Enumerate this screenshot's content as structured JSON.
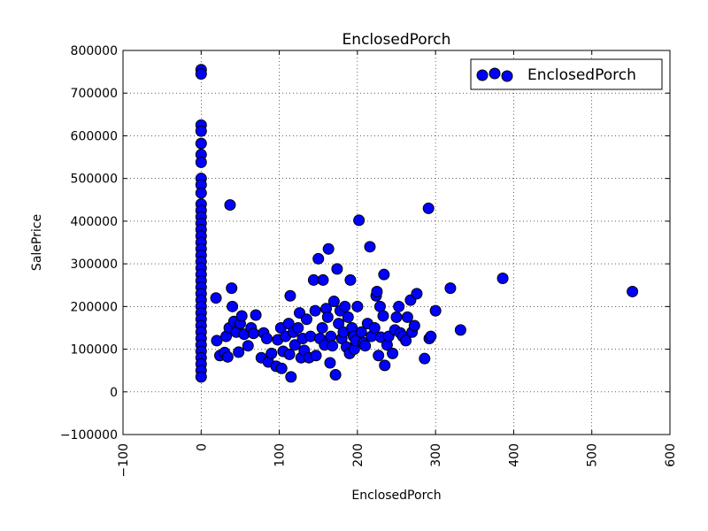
{
  "chart_data": {
    "type": "scatter",
    "title": "EnclosedPorch",
    "xlabel": "EnclosedPorch",
    "ylabel": "SalePrice",
    "xlim": [
      -100,
      600
    ],
    "ylim": [
      -100000,
      800000
    ],
    "xticks": [
      -100,
      0,
      100,
      200,
      300,
      400,
      500,
      600
    ],
    "yticks": [
      -100000,
      0,
      100000,
      200000,
      300000,
      400000,
      500000,
      600000,
      700000,
      800000
    ],
    "xtick_labels": [
      "−100",
      "0",
      "100",
      "200",
      "300",
      "400",
      "500",
      "600"
    ],
    "ytick_labels": [
      "−100000",
      "0",
      "100000",
      "200000",
      "300000",
      "400000",
      "500000",
      "600000",
      "700000",
      "800000"
    ],
    "grid": true,
    "legend": {
      "position": "top-right",
      "entries": [
        "EnclosedPorch"
      ]
    },
    "marker_color": "#0000ff",
    "series": [
      {
        "name": "EnclosedPorch",
        "points": [
          [
            0,
            755000
          ],
          [
            0,
            745000
          ],
          [
            0,
            625000
          ],
          [
            0,
            611000
          ],
          [
            0,
            582000
          ],
          [
            0,
            556000
          ],
          [
            0,
            538000
          ],
          [
            0,
            500000
          ],
          [
            0,
            485000
          ],
          [
            0,
            466000
          ],
          [
            0,
            440000
          ],
          [
            0,
            425000
          ],
          [
            0,
            410000
          ],
          [
            0,
            395000
          ],
          [
            0,
            380000
          ],
          [
            0,
            365000
          ],
          [
            0,
            350000
          ],
          [
            0,
            335000
          ],
          [
            0,
            320000
          ],
          [
            0,
            305000
          ],
          [
            0,
            290000
          ],
          [
            0,
            275000
          ],
          [
            0,
            260000
          ],
          [
            0,
            245000
          ],
          [
            0,
            230000
          ],
          [
            0,
            215000
          ],
          [
            0,
            200000
          ],
          [
            0,
            185000
          ],
          [
            0,
            170000
          ],
          [
            0,
            155000
          ],
          [
            0,
            140000
          ],
          [
            0,
            125000
          ],
          [
            0,
            110000
          ],
          [
            0,
            95000
          ],
          [
            0,
            80000
          ],
          [
            0,
            65000
          ],
          [
            0,
            50000
          ],
          [
            0,
            35000
          ],
          [
            19,
            220000
          ],
          [
            20,
            120000
          ],
          [
            24,
            85000
          ],
          [
            30,
            92000
          ],
          [
            32,
            130000
          ],
          [
            34,
            82000
          ],
          [
            36,
            150000
          ],
          [
            37,
            438000
          ],
          [
            39,
            243000
          ],
          [
            40,
            200000
          ],
          [
            42,
            165000
          ],
          [
            45,
            140000
          ],
          [
            48,
            93000
          ],
          [
            50,
            160000
          ],
          [
            52,
            178000
          ],
          [
            55,
            135000
          ],
          [
            60,
            108000
          ],
          [
            64,
            150000
          ],
          [
            67,
            137000
          ],
          [
            70,
            180000
          ],
          [
            77,
            80000
          ],
          [
            80,
            138000
          ],
          [
            84,
            125000
          ],
          [
            86,
            70000
          ],
          [
            90,
            90000
          ],
          [
            96,
            60000
          ],
          [
            98,
            122000
          ],
          [
            102,
            150000
          ],
          [
            103,
            55000
          ],
          [
            105,
            95000
          ],
          [
            108,
            130000
          ],
          [
            112,
            160000
          ],
          [
            113,
            88000
          ],
          [
            114,
            225000
          ],
          [
            115,
            35000
          ],
          [
            118,
            140000
          ],
          [
            120,
            110000
          ],
          [
            124,
            150000
          ],
          [
            126,
            185000
          ],
          [
            128,
            80000
          ],
          [
            130,
            125000
          ],
          [
            132,
            97000
          ],
          [
            135,
            170000
          ],
          [
            138,
            80000
          ],
          [
            140,
            130000
          ],
          [
            144,
            262000
          ],
          [
            146,
            190000
          ],
          [
            147,
            85000
          ],
          [
            150,
            312000
          ],
          [
            152,
            125000
          ],
          [
            155,
            150000
          ],
          [
            156,
            262000
          ],
          [
            158,
            110000
          ],
          [
            160,
            195000
          ],
          [
            162,
            175000
          ],
          [
            163,
            335000
          ],
          [
            165,
            68000
          ],
          [
            166,
            130000
          ],
          [
            168,
            108000
          ],
          [
            170,
            212000
          ],
          [
            172,
            40000
          ],
          [
            174,
            288000
          ],
          [
            176,
            160000
          ],
          [
            178,
            190000
          ],
          [
            180,
            125000
          ],
          [
            182,
            140000
          ],
          [
            184,
            200000
          ],
          [
            186,
            105000
          ],
          [
            188,
            175000
          ],
          [
            190,
            90000
          ],
          [
            191,
            262000
          ],
          [
            193,
            150000
          ],
          [
            195,
            130000
          ],
          [
            196,
            100000
          ],
          [
            198,
            120000
          ],
          [
            200,
            200000
          ],
          [
            202,
            402000
          ],
          [
            205,
            140000
          ],
          [
            208,
            115000
          ],
          [
            210,
            108000
          ],
          [
            213,
            160000
          ],
          [
            216,
            340000
          ],
          [
            218,
            130000
          ],
          [
            222,
            150000
          ],
          [
            224,
            225000
          ],
          [
            225,
            235000
          ],
          [
            227,
            85000
          ],
          [
            229,
            200000
          ],
          [
            230,
            128000
          ],
          [
            233,
            178000
          ],
          [
            234,
            275000
          ],
          [
            235,
            62000
          ],
          [
            238,
            110000
          ],
          [
            240,
            130000
          ],
          [
            245,
            90000
          ],
          [
            248,
            145000
          ],
          [
            250,
            175000
          ],
          [
            253,
            200000
          ],
          [
            255,
            138000
          ],
          [
            258,
            130000
          ],
          [
            262,
            120000
          ],
          [
            264,
            175000
          ],
          [
            268,
            215000
          ],
          [
            270,
            140000
          ],
          [
            273,
            155000
          ],
          [
            276,
            230000
          ],
          [
            286,
            78000
          ],
          [
            291,
            430000
          ],
          [
            292,
            125000
          ],
          [
            294,
            130000
          ],
          [
            300,
            190000
          ],
          [
            319,
            243000
          ],
          [
            332,
            145000
          ],
          [
            386,
            266000
          ],
          [
            552,
            235000
          ]
        ]
      }
    ]
  }
}
